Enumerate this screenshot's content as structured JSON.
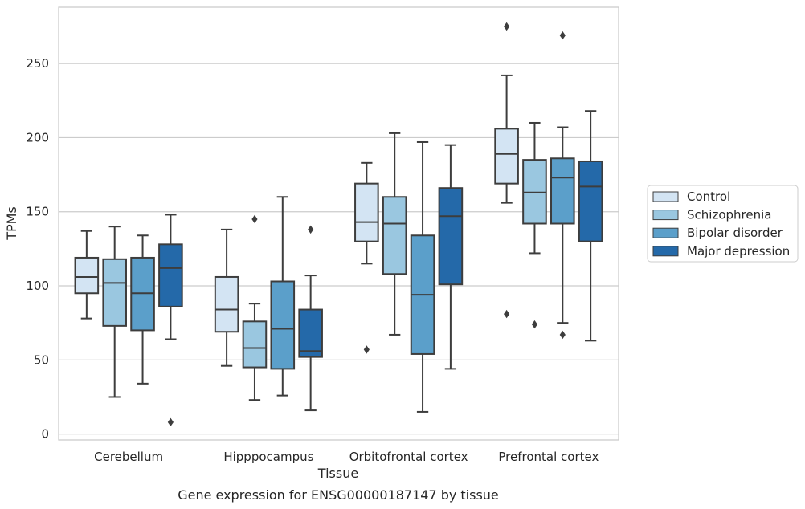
{
  "chart_data": {
    "type": "box",
    "title": "",
    "caption": "Gene expression for ENSG00000187147 by tissue",
    "xlabel": "Tissue",
    "ylabel": "TPMs",
    "ylim": [
      -4,
      288
    ],
    "yticks": [
      0,
      50,
      100,
      150,
      200,
      250
    ],
    "grid": "horizontal",
    "legend_position": "right",
    "categories": [
      "Cerebellum",
      "Hipppocampus",
      "Orbitofrontal cortex",
      "Prefrontal cortex"
    ],
    "series": [
      {
        "name": "Control",
        "color": "#d3e4f3",
        "boxes": [
          {
            "whisker_low": 78,
            "q1": 95,
            "median": 106,
            "q3": 119,
            "whisker_high": 137,
            "outliers": []
          },
          {
            "whisker_low": 46,
            "q1": 69,
            "median": 84,
            "q3": 106,
            "whisker_high": 138,
            "outliers": []
          },
          {
            "whisker_low": 115,
            "q1": 130,
            "median": 143,
            "q3": 169,
            "whisker_high": 183,
            "outliers": [
              57
            ]
          },
          {
            "whisker_low": 156,
            "q1": 169,
            "median": 189,
            "q3": 206,
            "whisker_high": 242,
            "outliers": [
              81,
              275
            ]
          }
        ]
      },
      {
        "name": "Schizophrenia",
        "color": "#9ac7e0",
        "boxes": [
          {
            "whisker_low": 25,
            "q1": 73,
            "median": 102,
            "q3": 118,
            "whisker_high": 140,
            "outliers": []
          },
          {
            "whisker_low": 23,
            "q1": 45,
            "median": 58,
            "q3": 76,
            "whisker_high": 88,
            "outliers": [
              145
            ]
          },
          {
            "whisker_low": 67,
            "q1": 108,
            "median": 142,
            "q3": 160,
            "whisker_high": 203,
            "outliers": []
          },
          {
            "whisker_low": 122,
            "q1": 142,
            "median": 163,
            "q3": 185,
            "whisker_high": 210,
            "outliers": [
              74
            ]
          }
        ]
      },
      {
        "name": "Bipolar disorder",
        "color": "#5b9fca",
        "boxes": [
          {
            "whisker_low": 34,
            "q1": 70,
            "median": 95,
            "q3": 119,
            "whisker_high": 134,
            "outliers": []
          },
          {
            "whisker_low": 26,
            "q1": 44,
            "median": 71,
            "q3": 103,
            "whisker_high": 160,
            "outliers": []
          },
          {
            "whisker_low": 15,
            "q1": 54,
            "median": 94,
            "q3": 134,
            "whisker_high": 197,
            "outliers": []
          },
          {
            "whisker_low": 75,
            "q1": 142,
            "median": 173,
            "q3": 186,
            "whisker_high": 207,
            "outliers": [
              67,
              269
            ]
          }
        ]
      },
      {
        "name": "Major depression",
        "color": "#2469a9",
        "boxes": [
          {
            "whisker_low": 64,
            "q1": 86,
            "median": 112,
            "q3": 128,
            "whisker_high": 148,
            "outliers": [
              8
            ]
          },
          {
            "whisker_low": 16,
            "q1": 52,
            "median": 56,
            "q3": 84,
            "whisker_high": 107,
            "outliers": [
              138
            ]
          },
          {
            "whisker_low": 44,
            "q1": 101,
            "median": 147,
            "q3": 166,
            "whisker_high": 195,
            "outliers": []
          },
          {
            "whisker_low": 63,
            "q1": 130,
            "median": 167,
            "q3": 184,
            "whisker_high": 218,
            "outliers": []
          }
        ]
      }
    ]
  }
}
